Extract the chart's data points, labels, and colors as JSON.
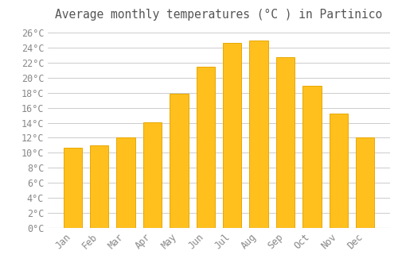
{
  "title": "Average monthly temperatures (°C ) in Partinico",
  "months": [
    "Jan",
    "Feb",
    "Mar",
    "Apr",
    "May",
    "Jun",
    "Jul",
    "Aug",
    "Sep",
    "Oct",
    "Nov",
    "Dec"
  ],
  "temperatures": [
    10.7,
    11.0,
    12.0,
    14.1,
    17.9,
    21.5,
    24.6,
    24.9,
    22.7,
    18.9,
    15.2,
    12.0
  ],
  "bar_color": "#FFC01E",
  "bar_edge_color": "#E8A800",
  "background_color": "#FFFFFF",
  "grid_color": "#CCCCCC",
  "title_color": "#555555",
  "tick_label_color": "#888888",
  "ylim": [
    0,
    27
  ],
  "ytick_step": 2,
  "title_fontsize": 10.5,
  "tick_fontsize": 8.5
}
